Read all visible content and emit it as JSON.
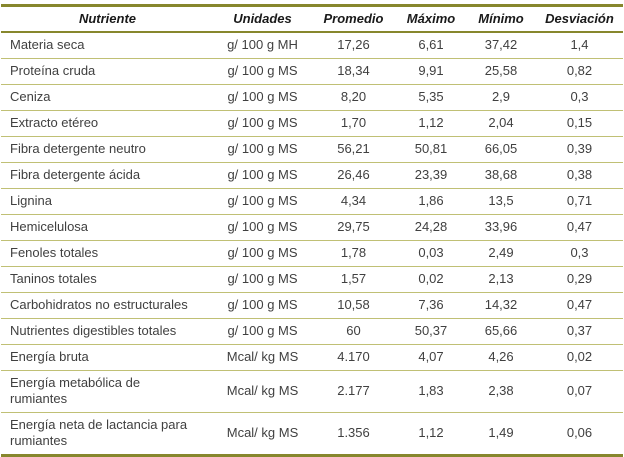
{
  "colors": {
    "border_thick": "#87872d",
    "border_thin": "#c0c075",
    "header_text": "#1a1a1a",
    "body_text": "#404040"
  },
  "table": {
    "columns": [
      "Nutriente",
      "Unidades",
      "Promedio",
      "Máximo",
      "Mínimo",
      "Desviación"
    ],
    "rows": [
      [
        "Materia seca",
        "g/ 100 g MH",
        "17,26",
        "6,61",
        "37,42",
        "1,4"
      ],
      [
        "Proteína cruda",
        "g/ 100 g MS",
        "18,34",
        "9,91",
        "25,58",
        "0,82"
      ],
      [
        "Ceniza",
        "g/ 100 g MS",
        "8,20",
        "5,35",
        "2,9",
        "0,3"
      ],
      [
        "Extracto etéreo",
        "g/ 100 g MS",
        "1,70",
        "1,12",
        "2,04",
        "0,15"
      ],
      [
        "Fibra detergente neutro",
        "g/ 100 g MS",
        "56,21",
        "50,81",
        "66,05",
        "0,39"
      ],
      [
        "Fibra detergente ácida",
        "g/ 100 g MS",
        "26,46",
        "23,39",
        "38,68",
        "0,38"
      ],
      [
        "Lignina",
        "g/ 100 g MS",
        "4,34",
        "1,86",
        "13,5",
        "0,71"
      ],
      [
        "Hemicelulosa",
        "g/ 100 g MS",
        "29,75",
        "24,28",
        "33,96",
        "0,47"
      ],
      [
        "Fenoles totales",
        "g/ 100 g MS",
        "1,78",
        "0,03",
        "2,49",
        "0,3"
      ],
      [
        "Taninos totales",
        "g/ 100 g MS",
        "1,57",
        "0,02",
        "2,13",
        "0,29"
      ],
      [
        "Carbohidratos no estructurales",
        "g/ 100 g MS",
        "10,58",
        "7,36",
        "14,32",
        "0,47"
      ],
      [
        "Nutrientes digestibles totales",
        "g/ 100 g MS",
        "60",
        "50,37",
        "65,66",
        "0,37"
      ],
      [
        "Energía bruta",
        "Mcal/ kg MS",
        "4.170",
        "4,07",
        "4,26",
        "0,02"
      ],
      [
        "Energía metabólica de rumiantes",
        "Mcal/ kg MS",
        "2.177",
        "1,83",
        "2,38",
        "0,07"
      ],
      [
        "Energía neta de lactancia para rumiantes",
        "Mcal/ kg MS",
        "1.356",
        "1,12",
        "1,49",
        "0,06"
      ]
    ]
  }
}
